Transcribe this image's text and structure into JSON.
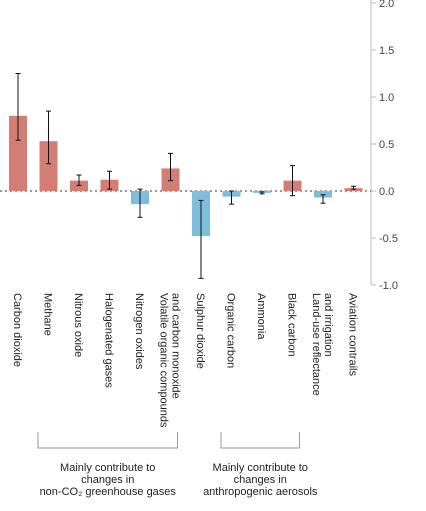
{
  "chart_data": {
    "type": "bar",
    "title": "",
    "xlabel": "",
    "ylabel": "",
    "ylim": [
      -1.0,
      2.0
    ],
    "yticks": [
      "2.0",
      "1.5",
      "1.0",
      "0.5",
      "0.0",
      "-0.5",
      "-1.0"
    ],
    "y_axis_side": "right",
    "grid": false,
    "categories": [
      "Carbon dioxide",
      "Methane",
      "Nitrous oxide",
      "Halogenated gases",
      "Nitrogen oxides",
      "Volatile organic compounds and carbon monoxide",
      "Sulphur dioxide",
      "Organic carbon",
      "Ammonia",
      "Black carbon",
      "Land-use reflectance and irrigation",
      "Aviation contrails"
    ],
    "category_label_lines": [
      [
        "Carbon dioxide"
      ],
      [
        "Methane"
      ],
      [
        "Nitrous oxide"
      ],
      [
        "Halogenated gases"
      ],
      [
        "Nitrogen oxides"
      ],
      [
        "Volatile organic compounds",
        "and carbon monoxide"
      ],
      [
        "Sulphur dioxide"
      ],
      [
        "Organic carbon"
      ],
      [
        "Ammonia"
      ],
      [
        "Black carbon"
      ],
      [
        "Land-use reflectance",
        "and irrigation"
      ],
      [
        "Aviation contrails"
      ]
    ],
    "values": [
      0.8,
      0.53,
      0.11,
      0.12,
      -0.14,
      0.24,
      -0.48,
      -0.06,
      -0.02,
      0.11,
      -0.07,
      0.03
    ],
    "error_low": [
      0.54,
      0.29,
      0.06,
      0.02,
      -0.28,
      0.11,
      -0.93,
      -0.14,
      -0.03,
      -0.05,
      -0.13,
      0.02
    ],
    "error_high": [
      1.25,
      0.85,
      0.17,
      0.21,
      0.02,
      0.4,
      -0.1,
      0.0,
      -0.01,
      0.27,
      -0.04,
      0.05
    ],
    "colors": {
      "positive": "#d47d74",
      "negative": "#7ebedb",
      "error_bar": "#111111",
      "axis": "#bdbdbd",
      "zero_line": "#333333"
    },
    "groups": [
      {
        "lines": [
          "Mainly contribute to",
          "changes in",
          "non-CO₂ greenhouse gases"
        ],
        "from": 0,
        "to": 5
      },
      {
        "lines": [
          "Mainly contribute to",
          "changes in",
          "anthropogenic aerosols"
        ],
        "from": 6,
        "to": 9
      }
    ]
  }
}
